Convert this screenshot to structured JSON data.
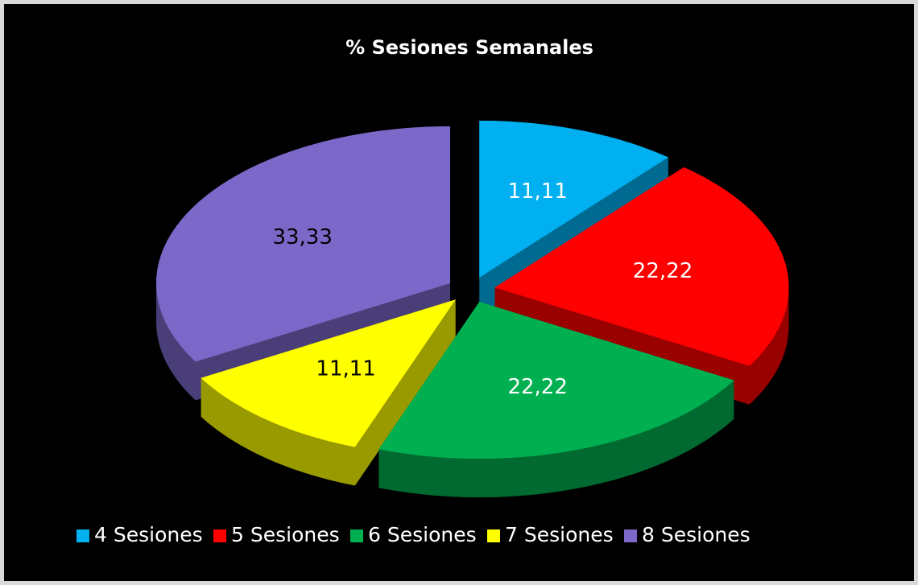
{
  "chart_data": {
    "type": "pie",
    "title": "% Sesiones Semanales",
    "categories": [
      "4 Sesiones",
      "5 Sesiones",
      "6 Sesiones",
      "7 Sesiones",
      "8 Sesiones"
    ],
    "values": [
      11.11,
      22.22,
      22.22,
      11.11,
      33.33
    ],
    "value_labels": [
      "11,11",
      "22,22",
      "22,22",
      "11,11",
      "33,33"
    ],
    "colors": [
      "#00b0f0",
      "#ff0000",
      "#00b050",
      "#ffff00",
      "#7b68c8"
    ],
    "label_colors": [
      "#ffffff",
      "#ffffff",
      "#ffffff",
      "#000000",
      "#000000"
    ],
    "legend": "bottom",
    "exploded": true,
    "three_d": true
  }
}
